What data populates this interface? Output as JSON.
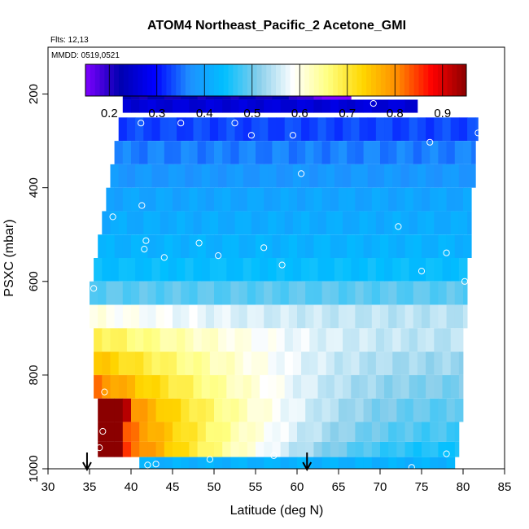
{
  "chart_data": {
    "type": "heatmap",
    "title": "ATOM4 Northeast_Pacific_2 Acetone_GMI",
    "subtitle_flights": "Flts: 12,13",
    "subtitle_dates": "MMDD: 0519,0521",
    "xlabel": "Latitude (deg N)",
    "ylabel": "PSXC (mbar)",
    "xlim": [
      30,
      85
    ],
    "ylim": [
      1000,
      100
    ],
    "x_ticks": [
      30,
      35,
      40,
      45,
      50,
      55,
      60,
      65,
      70,
      75,
      80,
      85
    ],
    "y_ticks": [
      200,
      400,
      600,
      800,
      1000
    ],
    "colorbar": {
      "range": [
        0.15,
        0.95
      ],
      "ticks": [
        0.2,
        0.3,
        0.4,
        0.5,
        0.6,
        0.7,
        0.8,
        0.9
      ]
    },
    "rows": [
      {
        "p": 200,
        "lat_min": 39.0,
        "lat_max": 66.5,
        "base": 0.22,
        "warm": 0.0,
        "west_dark": 0.0,
        "east_purple": 0.12
      },
      {
        "p": 225,
        "lat_min": 39.0,
        "lat_max": 74.5,
        "base": 0.26,
        "warm": 0.0,
        "west_dark": 0.0,
        "east_purple": 0.0
      },
      {
        "p": 275,
        "lat_min": 38.5,
        "lat_max": 81.8,
        "base": 0.33,
        "warm": 0.0,
        "west_dark": 0.0,
        "east_purple": 0.0
      },
      {
        "p": 325,
        "lat_min": 38.0,
        "lat_max": 81.5,
        "base": 0.36,
        "warm": 0.0,
        "west_dark": 0.0,
        "east_purple": 0.0
      },
      {
        "p": 375,
        "lat_min": 37.5,
        "lat_max": 81.5,
        "base": 0.38,
        "warm": 0.0,
        "west_dark": 0.0,
        "east_purple": 0.0
      },
      {
        "p": 425,
        "lat_min": 37.0,
        "lat_max": 81.0,
        "base": 0.4,
        "warm": 0.0,
        "west_dark": 0.0,
        "east_purple": 0.0
      },
      {
        "p": 475,
        "lat_min": 36.5,
        "lat_max": 81.0,
        "base": 0.41,
        "warm": 0.0,
        "west_dark": 0.0,
        "east_purple": 0.0
      },
      {
        "p": 525,
        "lat_min": 36.0,
        "lat_max": 81.0,
        "base": 0.42,
        "warm": 0.0,
        "west_dark": 0.0,
        "east_purple": 0.0
      },
      {
        "p": 575,
        "lat_min": 35.5,
        "lat_max": 80.5,
        "base": 0.44,
        "warm": 0.0,
        "west_dark": 0.0,
        "east_purple": 0.0
      },
      {
        "p": 625,
        "lat_min": 35.0,
        "lat_max": 80.5,
        "base": 0.49,
        "warm": 0.0,
        "west_dark": 0.0,
        "east_purple": 0.0
      },
      {
        "p": 675,
        "lat_min": 35.0,
        "lat_max": 80.5,
        "base": 0.55,
        "warm": 0.05,
        "west_dark": 0.0,
        "east_purple": 0.0
      },
      {
        "p": 725,
        "lat_min": 35.5,
        "lat_max": 80.0,
        "base": 0.56,
        "warm": 0.13,
        "west_dark": 0.0,
        "east_purple": 0.0
      },
      {
        "p": 775,
        "lat_min": 35.5,
        "lat_max": 80.0,
        "base": 0.55,
        "warm": 0.2,
        "west_dark": 0.0,
        "east_purple": 0.0
      },
      {
        "p": 825,
        "lat_min": 35.5,
        "lat_max": 80.0,
        "base": 0.54,
        "warm": 0.27,
        "west_dark": 0.0,
        "east_purple": 0.0
      },
      {
        "p": 875,
        "lat_min": 36.0,
        "lat_max": 80.0,
        "base": 0.53,
        "warm": 0.33,
        "west_dark": 0.04,
        "east_purple": 0.0
      },
      {
        "p": 925,
        "lat_min": 36.0,
        "lat_max": 79.5,
        "base": 0.52,
        "warm": 0.36,
        "west_dark": 0.07,
        "east_purple": 0.0
      },
      {
        "p": 960,
        "lat_min": 36.0,
        "lat_max": 79.5,
        "base": 0.5,
        "warm": 0.4,
        "west_dark": 0.09,
        "east_purple": 0.0
      },
      {
        "p": 990,
        "lat_min": 41.0,
        "lat_max": 79.0,
        "base": 0.42,
        "warm": 0.0,
        "west_dark": 0.0,
        "east_purple": 0.0
      }
    ],
    "observations": [
      {
        "lat": 39.5,
        "p": 195
      },
      {
        "lat": 64.5,
        "p": 190
      },
      {
        "lat": 67.0,
        "p": 188
      },
      {
        "lat": 69.2,
        "p": 220
      },
      {
        "lat": 41.2,
        "p": 262
      },
      {
        "lat": 46.0,
        "p": 262
      },
      {
        "lat": 52.5,
        "p": 262
      },
      {
        "lat": 54.5,
        "p": 288
      },
      {
        "lat": 59.5,
        "p": 288
      },
      {
        "lat": 76.0,
        "p": 303
      },
      {
        "lat": 81.8,
        "p": 283
      },
      {
        "lat": 60.5,
        "p": 370
      },
      {
        "lat": 41.3,
        "p": 438
      },
      {
        "lat": 37.8,
        "p": 462
      },
      {
        "lat": 41.8,
        "p": 513
      },
      {
        "lat": 41.6,
        "p": 531
      },
      {
        "lat": 48.2,
        "p": 518
      },
      {
        "lat": 44.0,
        "p": 549
      },
      {
        "lat": 50.5,
        "p": 545
      },
      {
        "lat": 56.0,
        "p": 528
      },
      {
        "lat": 58.2,
        "p": 565
      },
      {
        "lat": 72.2,
        "p": 483
      },
      {
        "lat": 78.0,
        "p": 539
      },
      {
        "lat": 75.0,
        "p": 578
      },
      {
        "lat": 80.2,
        "p": 600
      },
      {
        "lat": 35.5,
        "p": 615
      },
      {
        "lat": 36.8,
        "p": 836
      },
      {
        "lat": 36.6,
        "p": 920
      },
      {
        "lat": 36.2,
        "p": 955
      },
      {
        "lat": 42.0,
        "p": 992
      },
      {
        "lat": 43.0,
        "p": 990
      },
      {
        "lat": 49.5,
        "p": 980
      },
      {
        "lat": 57.2,
        "p": 972
      },
      {
        "lat": 73.8,
        "p": 997
      },
      {
        "lat": 78.0,
        "p": 968
      },
      {
        "lat": 79.5,
        "p": 986
      }
    ],
    "arrows": [
      {
        "lat": 34.7
      },
      {
        "lat": 61.2
      }
    ],
    "colors": {
      "palette": [
        "#7f00ff",
        "#0000b0",
        "#0000ff",
        "#1e90ff",
        "#00bfff",
        "#87ceeb",
        "#ffffff",
        "#ffff80",
        "#ffd700",
        "#ff8c00",
        "#ff0000",
        "#8b0000"
      ]
    }
  }
}
